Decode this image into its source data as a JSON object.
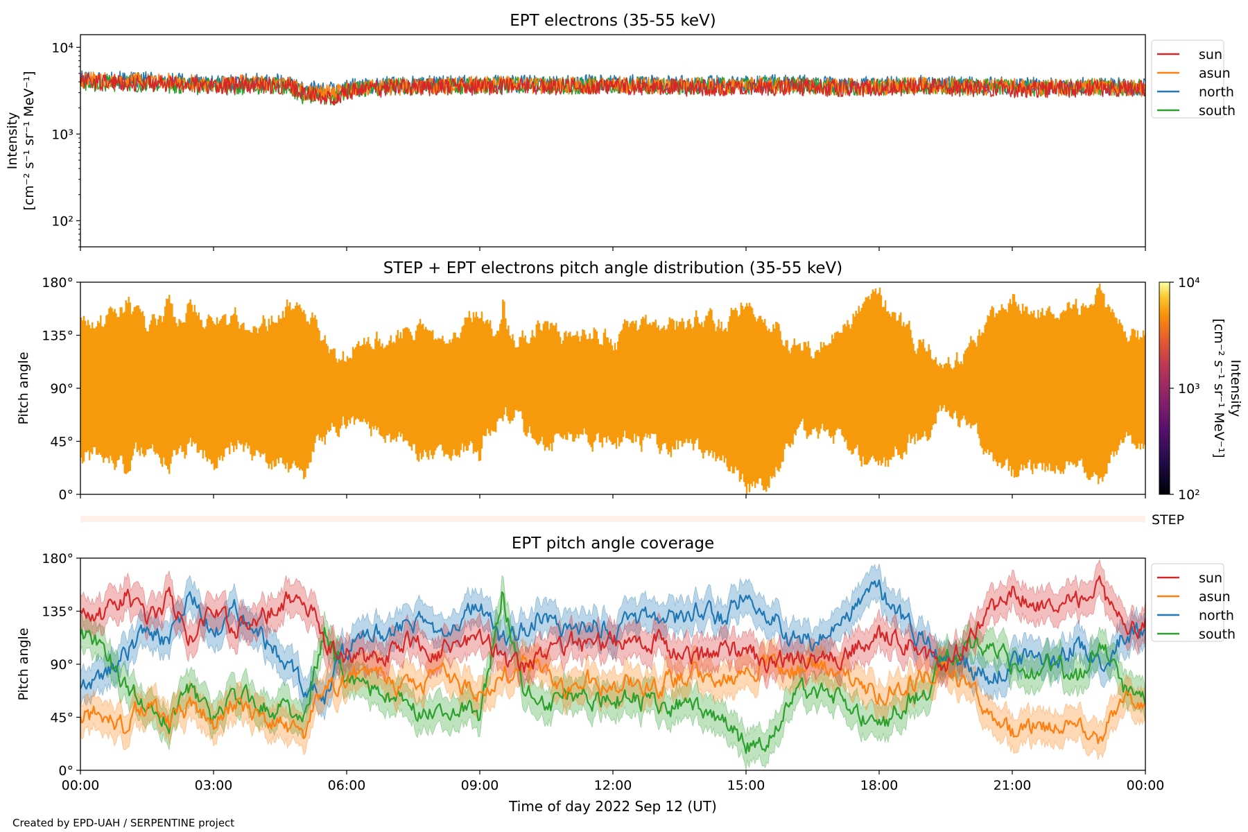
{
  "footer": "Created by EPD-UAH / SERPENTINE project",
  "step_label": "STEP",
  "xlabel": "Time of day 2022 Sep 12 (UT)",
  "x_ticks": [
    "00:00",
    "03:00",
    "06:00",
    "09:00",
    "12:00",
    "15:00",
    "18:00",
    "21:00",
    "00:00"
  ],
  "colors": {
    "sun": "#d62728",
    "asun": "#ff7f0e",
    "north": "#1f77b4",
    "south": "#2ca02c",
    "pad": "#f99a0c"
  },
  "chart_data": [
    {
      "type": "line",
      "title": "EPT electrons (35-55 keV)",
      "ylabel": [
        "Intensity",
        "[cm⁻² s⁻¹ sr⁻¹ MeV⁻¹]"
      ],
      "yscale": "log",
      "ylim": [
        50,
        14000
      ],
      "y_ticks": [
        "10⁴",
        "10³",
        "10²"
      ],
      "x_hours": [
        0,
        1,
        2,
        3,
        4,
        4.7,
        5,
        5.8,
        6,
        7,
        8,
        9,
        10,
        11,
        12,
        13,
        14,
        15,
        16,
        17,
        18,
        19,
        20,
        21,
        22,
        23,
        24
      ],
      "series": [
        {
          "name": "sun",
          "values": [
            4000,
            3900,
            3800,
            3600,
            3700,
            3600,
            2900,
            2700,
            3100,
            3400,
            3500,
            3500,
            3600,
            3500,
            3600,
            3500,
            3400,
            3500,
            3500,
            3400,
            3400,
            3500,
            3400,
            3300,
            3300,
            3400,
            3300
          ]
        },
        {
          "name": "asun",
          "values": [
            4200,
            4100,
            4000,
            3800,
            3900,
            3700,
            3100,
            3000,
            3300,
            3500,
            3600,
            3700,
            3700,
            3600,
            3700,
            3600,
            3600,
            3600,
            3700,
            3500,
            3500,
            3600,
            3500,
            3500,
            3400,
            3500,
            3400
          ]
        },
        {
          "name": "north",
          "values": [
            4300,
            4200,
            4100,
            3900,
            4000,
            3900,
            3300,
            3200,
            3500,
            3700,
            3800,
            3800,
            3800,
            3800,
            3900,
            3800,
            3800,
            3800,
            3900,
            3700,
            3700,
            3800,
            3700,
            3600,
            3600,
            3600,
            3500
          ]
        },
        {
          "name": "south",
          "values": [
            3900,
            3800,
            3700,
            3500,
            3600,
            3500,
            2800,
            2700,
            3200,
            3500,
            3600,
            3600,
            3700,
            3600,
            3700,
            3600,
            3600,
            3600,
            3700,
            3500,
            3500,
            3600,
            3500,
            3400,
            3400,
            3500,
            3400
          ]
        }
      ],
      "legend": "upper right outside",
      "legend_entries": [
        "sun",
        "asun",
        "north",
        "south"
      ]
    },
    {
      "type": "heatmap",
      "title": "STEP + EPT electrons pitch angle distribution (35-55 keV)",
      "ylabel": "Pitch angle",
      "ylim": [
        0,
        180
      ],
      "y_ticks": [
        "180°",
        "135°",
        "90°",
        "45°",
        "0°"
      ],
      "colorbar": {
        "label": [
          "Intensity",
          "[cm⁻² s⁻¹ sr⁻¹ MeV⁻¹]"
        ],
        "scale": "log",
        "range": [
          100,
          10000
        ],
        "ticks": [
          "10⁴",
          "10³",
          "10²"
        ]
      },
      "typical_intensity": 3500
    },
    {
      "type": "line",
      "title": "EPT pitch angle coverage",
      "ylabel": "Pitch angle",
      "ylim": [
        0,
        180
      ],
      "y_ticks": [
        "180°",
        "135°",
        "90°",
        "45°",
        "0°"
      ],
      "x_hours": [
        0,
        0.5,
        1,
        1.5,
        2,
        2.5,
        3,
        3.5,
        4,
        4.5,
        5,
        5.5,
        6,
        6.5,
        7,
        7.5,
        8,
        8.5,
        9,
        9.5,
        10,
        10.5,
        11,
        11.5,
        12,
        12.5,
        13,
        13.5,
        14,
        14.5,
        15,
        15.5,
        16,
        16.5,
        17,
        17.5,
        18,
        18.5,
        19,
        19.5,
        20,
        20.5,
        21,
        21.5,
        22,
        22.5,
        23,
        23.5,
        24
      ],
      "series": [
        {
          "name": "sun",
          "values": [
            135,
            130,
            150,
            125,
            145,
            110,
            135,
            120,
            130,
            140,
            150,
            110,
            100,
            95,
            100,
            110,
            100,
            105,
            115,
            95,
            85,
            100,
            110,
            105,
            110,
            105,
            110,
            100,
            95,
            105,
            100,
            90,
            95,
            90,
            95,
            105,
            115,
            110,
            100,
            90,
            110,
            135,
            150,
            140,
            145,
            145,
            155,
            120,
            125
          ]
        },
        {
          "name": "asun",
          "values": [
            45,
            50,
            35,
            60,
            40,
            55,
            40,
            60,
            50,
            40,
            25,
            70,
            80,
            80,
            75,
            70,
            80,
            75,
            65,
            80,
            95,
            80,
            70,
            75,
            70,
            75,
            70,
            80,
            85,
            75,
            80,
            90,
            85,
            90,
            85,
            75,
            65,
            70,
            80,
            90,
            70,
            45,
            30,
            40,
            35,
            35,
            25,
            60,
            55
          ]
        },
        {
          "name": "north",
          "values": [
            70,
            80,
            100,
            120,
            110,
            150,
            110,
            140,
            120,
            95,
            75,
            60,
            105,
            115,
            120,
            125,
            120,
            130,
            140,
            110,
            120,
            135,
            115,
            125,
            120,
            125,
            130,
            130,
            140,
            125,
            155,
            135,
            110,
            110,
            125,
            140,
            150,
            130,
            110,
            95,
            90,
            75,
            90,
            100,
            90,
            110,
            85,
            115,
            120
          ]
        },
        {
          "name": "south",
          "values": [
            115,
            105,
            70,
            55,
            40,
            70,
            45,
            60,
            60,
            50,
            40,
            120,
            75,
            70,
            60,
            50,
            55,
            55,
            45,
            150,
            70,
            55,
            65,
            60,
            60,
            60,
            55,
            55,
            55,
            40,
            20,
            30,
            60,
            70,
            60,
            45,
            35,
            55,
            65,
            90,
            105,
            105,
            90,
            85,
            90,
            75,
            110,
            65,
            65
          ]
        }
      ],
      "legend": "upper right outside",
      "legend_entries": [
        "sun",
        "asun",
        "north",
        "south"
      ]
    }
  ]
}
